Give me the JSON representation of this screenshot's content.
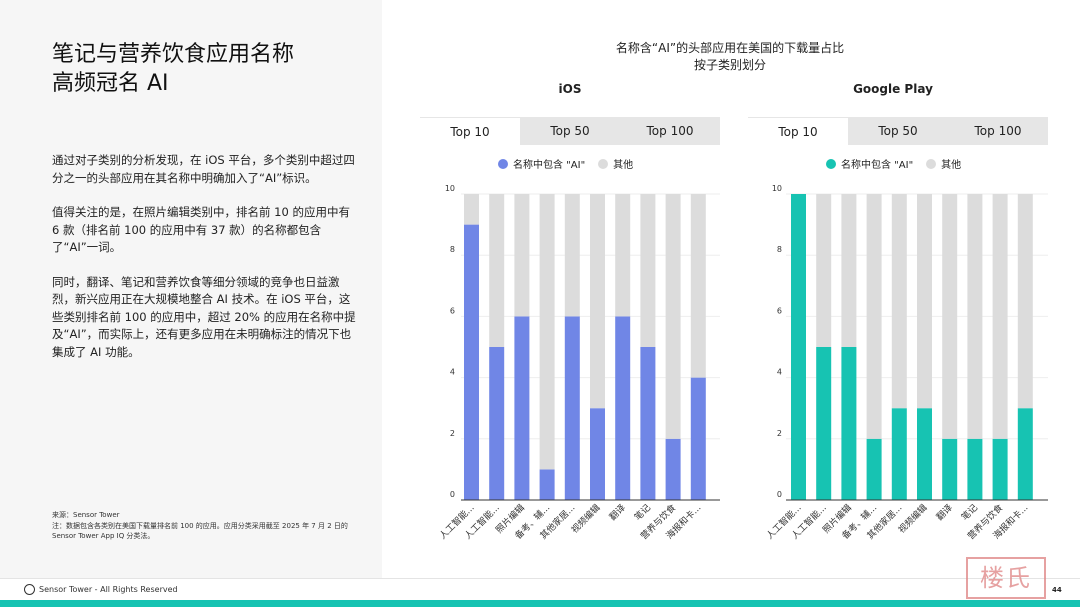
{
  "left": {
    "title_line1": "笔记与营养饮食应用名称",
    "title_line2": "高频冠名 AI",
    "para1": "通过对子类别的分析发现，在 iOS 平台，多个类别中超过四分之一的头部应用在其名称中明确加入了“AI”标识。",
    "para2": "值得关注的是，在照片编辑类别中，排名前 10 的应用中有 6 款（排名前 100 的应用中有 37 款）的名称都包含了“AI”一词。",
    "para3": "同时，翻译、笔记和营养饮食等细分领域的竞争也日益激烈，新兴应用正在大规模地整合 AI 技术。在 iOS 平台，这些类别排名前 100 的应用中，超过 20% 的应用在名称中提及“AI”，而实际上，还有更多应用在未明确标注的情况下也集成了 AI 功能。",
    "source": "来源：Sensor Tower",
    "note": "注：数据包含各类别在美国下载量排名前 100 的应用。应用分类采用截至 2025 年 7 月 2 日的 Sensor Tower App IQ 分类法。"
  },
  "footer": {
    "brand": "Sensor Tower - All Rights Reserved",
    "page": "44"
  },
  "chart_title_line1": "名称含“AI”的头部应用在美国的下载量占比",
  "chart_title_line2": "按子类别划分",
  "chart_data": [
    {
      "type": "bar",
      "stacked": true,
      "title": "iOS",
      "tabs": [
        "Top 10",
        "Top 50",
        "Top 100"
      ],
      "active_tab": "Top 10",
      "legend": [
        "名称中包含 \"AI\"",
        "其他"
      ],
      "colors": [
        "#7086e6",
        "#dcdcdc"
      ],
      "categories": [
        "人工智能...",
        "人工智能...",
        "照片编辑",
        "备考、辅...",
        "其他家居...",
        "视频编辑",
        "翻译",
        "笔记",
        "营养与饮食",
        "海报和卡..."
      ],
      "series": [
        {
          "name": "名称中包含 \"AI\"",
          "values": [
            9,
            5,
            6,
            1,
            6,
            3,
            6,
            5,
            2,
            4
          ]
        },
        {
          "name": "其他",
          "values": [
            1,
            5,
            4,
            9,
            4,
            7,
            4,
            5,
            8,
            6
          ]
        }
      ],
      "yticks": [
        "0",
        "2",
        "4",
        "6",
        "8",
        "10"
      ],
      "ylim": [
        0,
        10
      ],
      "grid": true,
      "legend_position": "top"
    },
    {
      "type": "bar",
      "stacked": true,
      "title": "Google Play",
      "tabs": [
        "Top 10",
        "Top 50",
        "Top 100"
      ],
      "active_tab": "Top 10",
      "legend": [
        "名称中包含 \"AI\"",
        "其他"
      ],
      "colors": [
        "#17c3b2",
        "#dcdcdc"
      ],
      "categories": [
        "人工智能...",
        "人工智能...",
        "照片编辑",
        "备考、辅...",
        "其他家居...",
        "视频编辑",
        "翻译",
        "笔记",
        "营养与饮食",
        "海报和卡..."
      ],
      "series": [
        {
          "name": "名称中包含 \"AI\"",
          "values": [
            10,
            5,
            5,
            2,
            3,
            3,
            2,
            2,
            2,
            3
          ]
        },
        {
          "name": "其他",
          "values": [
            0,
            5,
            5,
            8,
            7,
            7,
            8,
            8,
            8,
            7
          ]
        }
      ],
      "yticks": [
        "0",
        "2",
        "4",
        "6",
        "8",
        "10"
      ],
      "ylim": [
        0,
        10
      ],
      "grid": true,
      "legend_position": "top"
    }
  ]
}
